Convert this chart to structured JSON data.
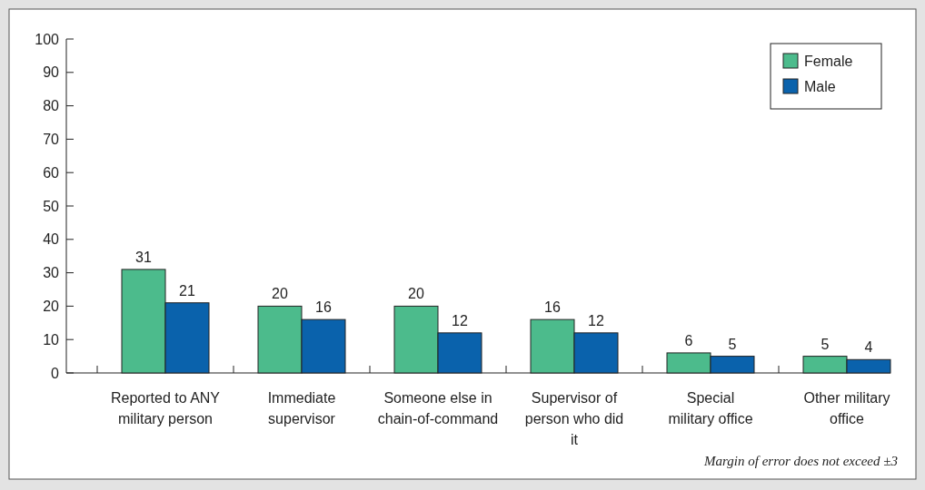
{
  "chart_data": {
    "type": "bar",
    "categories": [
      "Reported to ANY military person",
      "Immediate supervisor",
      "Someone else in chain-of-command",
      "Supervisor of person who did it",
      "Special military office",
      "Other military office"
    ],
    "series": [
      {
        "name": "Female",
        "color": "#4cbb8c",
        "values": [
          31,
          20,
          20,
          16,
          6,
          5
        ]
      },
      {
        "name": "Male",
        "color": "#0a62ac",
        "values": [
          21,
          16,
          12,
          12,
          5,
          4
        ]
      }
    ],
    "ylim": [
      0,
      100
    ],
    "yticks": [
      0,
      10,
      20,
      30,
      40,
      50,
      60,
      70,
      80,
      90,
      100
    ],
    "grid": false,
    "legend": "top right",
    "data_labels": true,
    "annotations": [
      "Margin of error does not exceed ±3"
    ]
  }
}
